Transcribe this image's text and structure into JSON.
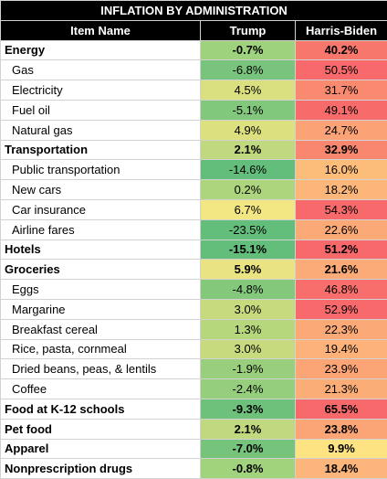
{
  "chart_data": {
    "type": "table",
    "title": "INFLATION BY ADMINISTRATION",
    "columns": [
      "Item Name",
      "Trump",
      "Harris-Biden"
    ],
    "rows": [
      {
        "item": "Energy",
        "trump": "-0.7%",
        "biden": "40.2%",
        "bold": true,
        "trump_color": "#9fd27c",
        "biden_color": "#f8776d"
      },
      {
        "item": "Gas",
        "trump": "-6.8%",
        "biden": "50.5%",
        "bold": false,
        "trump_color": "#79c47c",
        "biden_color": "#f8696b"
      },
      {
        "item": "Electricity",
        "trump": "4.5%",
        "biden": "31.7%",
        "bold": false,
        "trump_color": "#dadf7f",
        "biden_color": "#f98a70"
      },
      {
        "item": "Fuel oil",
        "trump": "-5.1%",
        "biden": "49.1%",
        "bold": false,
        "trump_color": "#81c77c",
        "biden_color": "#f86b6b"
      },
      {
        "item": "Natural gas",
        "trump": "4.9%",
        "biden": "24.7%",
        "bold": false,
        "trump_color": "#dde07f",
        "biden_color": "#fba276"
      },
      {
        "item": "Transportation",
        "trump": "2.1%",
        "biden": "32.9%",
        "bold": true,
        "trump_color": "#c0d97e",
        "biden_color": "#f9876f"
      },
      {
        "item": "Public transportation",
        "trump": "-14.6%",
        "biden": "16.0%",
        "bold": false,
        "trump_color": "#63be7b",
        "biden_color": "#fcbd7b"
      },
      {
        "item": "New cars",
        "trump": "0.2%",
        "biden": "18.2%",
        "bold": false,
        "trump_color": "#add57d",
        "biden_color": "#fcb67a"
      },
      {
        "item": "Car insurance",
        "trump": "6.7%",
        "biden": "54.3%",
        "bold": false,
        "trump_color": "#f2e783",
        "biden_color": "#f8696b"
      },
      {
        "item": "Airline fares",
        "trump": "-23.5%",
        "biden": "22.6%",
        "bold": false,
        "trump_color": "#63be7b",
        "biden_color": "#fba977"
      },
      {
        "item": "Hotels",
        "trump": "-15.1%",
        "biden": "51.2%",
        "bold": true,
        "trump_color": "#63be7b",
        "biden_color": "#f8696b"
      },
      {
        "item": "Groceries",
        "trump": "5.9%",
        "biden": "21.6%",
        "bold": true,
        "trump_color": "#e9e382",
        "biden_color": "#fbab77"
      },
      {
        "item": "Eggs",
        "trump": "-4.8%",
        "biden": "46.8%",
        "bold": false,
        "trump_color": "#84c87c",
        "biden_color": "#f86e6c"
      },
      {
        "item": "Margarine",
        "trump": "3.0%",
        "biden": "52.9%",
        "bold": false,
        "trump_color": "#c8da7e",
        "biden_color": "#f8696b"
      },
      {
        "item": "Breakfast cereal",
        "trump": "1.3%",
        "biden": "22.3%",
        "bold": false,
        "trump_color": "#b7d77d",
        "biden_color": "#fbaa77"
      },
      {
        "item": "Rice, pasta, cornmeal",
        "trump": "3.0%",
        "biden": "19.4%",
        "bold": false,
        "trump_color": "#c8da7e",
        "biden_color": "#fcb279"
      },
      {
        "item": "Dried beans, peas, & lentils",
        "trump": "-1.9%",
        "biden": "23.9%",
        "bold": false,
        "trump_color": "#99cf7c",
        "biden_color": "#fba576"
      },
      {
        "item": "Coffee",
        "trump": "-2.4%",
        "biden": "21.3%",
        "bold": false,
        "trump_color": "#95ce7c",
        "biden_color": "#fbad78"
      },
      {
        "item": "Food at K-12 schools",
        "trump": "-9.3%",
        "biden": "65.5%",
        "bold": true,
        "trump_color": "#6ec17b",
        "biden_color": "#f8696b"
      },
      {
        "item": "Pet food",
        "trump": "2.1%",
        "biden": "23.8%",
        "bold": true,
        "trump_color": "#c0d97e",
        "biden_color": "#fba576"
      },
      {
        "item": "Apparel",
        "trump": "-7.0%",
        "biden": "9.9%",
        "bold": true,
        "trump_color": "#76c37c",
        "biden_color": "#fee382"
      },
      {
        "item": "Nonprescription drugs",
        "trump": "-0.8%",
        "biden": "18.4%",
        "bold": true,
        "trump_color": "#a1d27c",
        "biden_color": "#fcb57a"
      }
    ]
  }
}
